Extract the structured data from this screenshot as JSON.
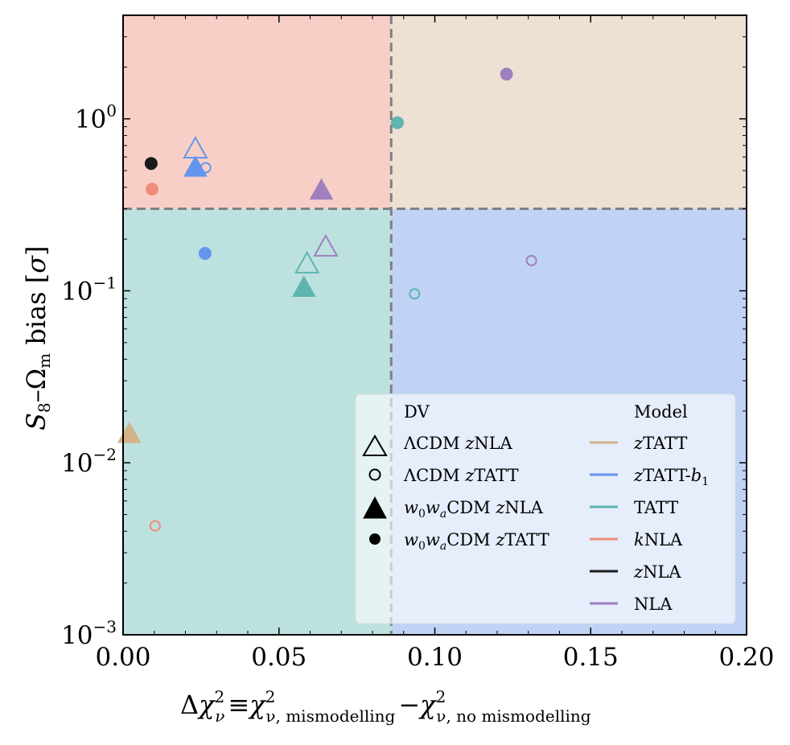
{
  "chart_data": {
    "type": "scatter",
    "x_axis": {
      "label_parts": {
        "delta": "Δ",
        "chi": "χ",
        "sub": "ν",
        "sup": "2",
        "equiv": "≡",
        "mis": "ν, mismodelling",
        "minus": "−",
        "nomis": "ν, no mismodelling"
      },
      "scale": "linear",
      "range": [
        0.0,
        0.2
      ],
      "ticks": [
        0.0,
        0.05,
        0.1,
        0.15,
        0.2
      ],
      "tick_labels": [
        "0.00",
        "0.05",
        "0.10",
        "0.15",
        "0.20"
      ]
    },
    "y_axis": {
      "label_parts": {
        "s": "S",
        "s_sub": "8",
        "dash": "–",
        "omega": "Ω",
        "omega_sub": "m",
        "bias": " bias [",
        "sigma": "σ",
        "close": "]"
      },
      "scale": "log",
      "range": [
        0.001,
        4.0
      ],
      "ticks": [
        0.001,
        0.01,
        0.1,
        1.0
      ],
      "tick_labels": [
        {
          "base": "10",
          "exp": "−3"
        },
        {
          "base": "10",
          "exp": "−2"
        },
        {
          "base": "10",
          "exp": "−1"
        },
        {
          "base": "10",
          "exp": "0"
        }
      ]
    },
    "thresholds": {
      "x": 0.086,
      "y": 0.3
    },
    "quadrants": [
      {
        "name": "upper-left",
        "color": "#f8cfc7"
      },
      {
        "name": "upper-right",
        "color": "#ede1d3"
      },
      {
        "name": "lower-left",
        "color": "#bde1df"
      },
      {
        "name": "lower-right",
        "color": "#c0d3f6"
      }
    ],
    "models": [
      {
        "name": "zTATT",
        "label_italic": "z",
        "label_rest": "TATT",
        "color": "#d4b28a"
      },
      {
        "name": "zTATT-b1",
        "label_italic": "z",
        "label_rest": "TATT-",
        "label_b": "b",
        "label_b_sub": "1",
        "color": "#6495ed"
      },
      {
        "name": "TATT",
        "label_italic": "",
        "label_rest": "TATT",
        "color": "#5fb5af"
      },
      {
        "name": "kNLA",
        "label_italic": "k",
        "label_rest": "NLA",
        "color": "#f08c7a"
      },
      {
        "name": "zNLA",
        "label_italic": "z",
        "label_rest": "NLA",
        "color": "#1a1a1a"
      },
      {
        "name": "NLA",
        "label_italic": "",
        "label_rest": "NLA",
        "color": "#9e80bf"
      }
    ],
    "dv_types": [
      {
        "id": "lcdm_znla",
        "marker": "triangle",
        "filled": false,
        "label_a": "ΛCDM ",
        "label_italic": "z",
        "label_b": "NLA"
      },
      {
        "id": "lcdm_ztatt",
        "marker": "circle",
        "filled": false,
        "label_a": "ΛCDM ",
        "label_italic": "z",
        "label_b": "TATT"
      },
      {
        "id": "w0wa_znla",
        "marker": "triangle",
        "filled": true,
        "label_a": "w0wa",
        "label_italic": "z",
        "label_b": "NLA"
      },
      {
        "id": "w0wa_ztatt",
        "marker": "circle",
        "filled": true,
        "label_a": "w0wa",
        "label_italic": "z",
        "label_b": "TATT"
      }
    ],
    "legend": {
      "title_dv": "DV",
      "title_model": "Model",
      "w_letter": "w",
      "w_sub0": "0",
      "w_a": "a",
      "cdm": "CDM ",
      "lambda_cdm": "ΛCDM "
    },
    "points": [
      {
        "model": "zTATT-b1",
        "dv": "lcdm_znla",
        "x": 0.0232,
        "y": 0.68
      },
      {
        "model": "zTATT-b1",
        "dv": "w0wa_znla",
        "x": 0.0232,
        "y": 0.53
      },
      {
        "model": "zTATT-b1",
        "dv": "lcdm_ztatt",
        "x": 0.0265,
        "y": 0.52
      },
      {
        "model": "zTATT-b1",
        "dv": "w0wa_ztatt",
        "x": 0.0263,
        "y": 0.165
      },
      {
        "model": "zNLA",
        "dv": "w0wa_ztatt",
        "x": 0.009,
        "y": 0.55
      },
      {
        "model": "kNLA",
        "dv": "w0wa_ztatt",
        "x": 0.0093,
        "y": 0.39
      },
      {
        "model": "kNLA",
        "dv": "lcdm_ztatt",
        "x": 0.0103,
        "y": 0.0043
      },
      {
        "model": "NLA",
        "dv": "w0wa_znla",
        "x": 0.0636,
        "y": 0.39
      },
      {
        "model": "NLA",
        "dv": "lcdm_znla",
        "x": 0.065,
        "y": 0.183
      },
      {
        "model": "NLA",
        "dv": "w0wa_ztatt",
        "x": 0.123,
        "y": 1.82
      },
      {
        "model": "NLA",
        "dv": "lcdm_ztatt",
        "x": 0.131,
        "y": 0.15
      },
      {
        "model": "TATT",
        "dv": "lcdm_znla",
        "x": 0.059,
        "y": 0.146
      },
      {
        "model": "TATT",
        "dv": "w0wa_znla",
        "x": 0.058,
        "y": 0.106
      },
      {
        "model": "TATT",
        "dv": "w0wa_ztatt",
        "x": 0.088,
        "y": 0.95
      },
      {
        "model": "TATT",
        "dv": "lcdm_ztatt",
        "x": 0.0935,
        "y": 0.096
      },
      {
        "model": "zTATT",
        "dv": "w0wa_znla",
        "x": 0.002,
        "y": 0.015
      }
    ]
  }
}
